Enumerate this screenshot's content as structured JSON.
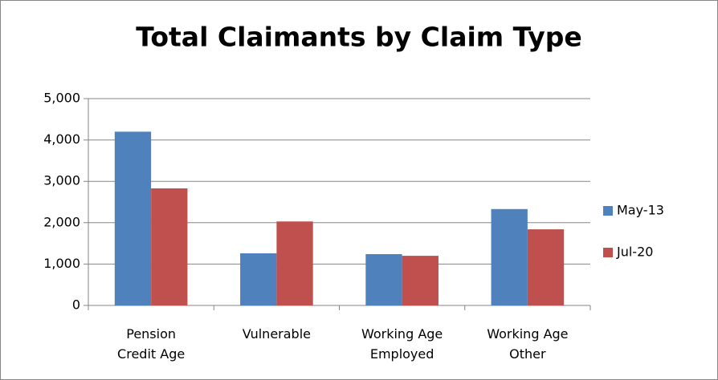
{
  "chart_data": {
    "type": "bar",
    "title": "Total Claimants by Claim Type",
    "categories": [
      "Pension Credit Age",
      "Vulnerable",
      "Working Age Employed",
      "Working Age Other"
    ],
    "series": [
      {
        "name": "May-13",
        "color": "#4f81bd",
        "values": [
          4200,
          1260,
          1240,
          2330
        ]
      },
      {
        "name": "Jul-20",
        "color": "#c0504d",
        "values": [
          2830,
          2030,
          1200,
          1840
        ]
      }
    ],
    "ylim": [
      0,
      5000
    ],
    "yticks": [
      0,
      {
        "value": 1000,
        "label": "1,000"
      },
      {
        "value": 2000,
        "label": "2,000"
      },
      {
        "value": 3000,
        "label": "3,000"
      },
      {
        "value": 4000,
        "label": "4,000"
      },
      {
        "value": 5000,
        "label": "5,000"
      }
    ],
    "grid": true,
    "legend": "right"
  }
}
